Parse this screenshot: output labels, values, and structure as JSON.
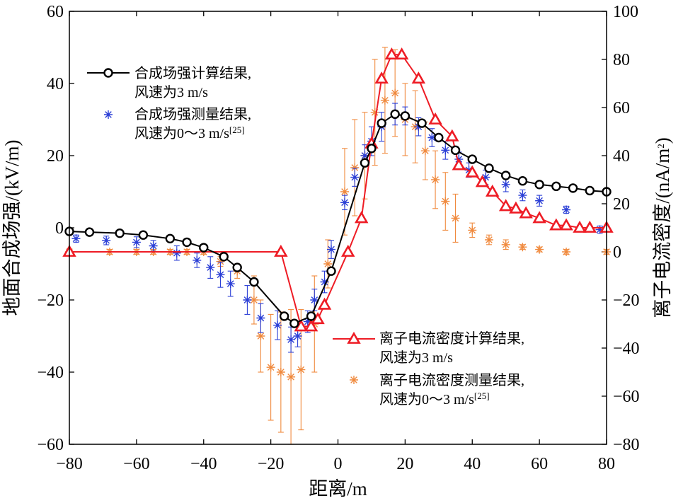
{
  "chart_data": {
    "type": "line",
    "x_axis": {
      "label": "距离/m",
      "range": [
        -80,
        80
      ],
      "ticks": [
        -80,
        -60,
        -40,
        -20,
        0,
        20,
        40,
        60,
        80
      ],
      "tick_labels": [
        "−80",
        "−60",
        "−40",
        "−20",
        "0",
        "20",
        "40",
        "60",
        "80"
      ]
    },
    "y_left": {
      "label": "地面合成场强/(kV/m)",
      "range": [
        -60,
        60
      ],
      "ticks": [
        -60,
        -40,
        -20,
        0,
        20,
        40,
        60
      ],
      "tick_labels": [
        "−60",
        "−40",
        "−20",
        "0",
        "20",
        "40",
        "60"
      ]
    },
    "y_right": {
      "label_main": "离子电流密度/(nA/m",
      "label_sup": "2",
      "label_tail": ")",
      "range": [
        -80,
        100
      ],
      "ticks": [
        -80,
        -60,
        -40,
        -20,
        0,
        20,
        40,
        60,
        80,
        100
      ],
      "tick_labels": [
        "−80",
        "−60",
        "−40",
        "−20",
        "0",
        "20",
        "40",
        "60",
        "80",
        "100"
      ]
    },
    "grid": false,
    "series": [
      {
        "id": "field_calc",
        "axis": "left",
        "color": "#000000",
        "marker": "circle",
        "legend": [
          "合成场强计算结果,",
          "风速为3 m/s"
        ],
        "x": [
          -80,
          -74,
          -65,
          -58,
          -50,
          -45,
          -40,
          -34,
          -30,
          -25,
          -16,
          -13,
          -8,
          -2,
          8,
          10,
          13,
          17,
          20,
          25,
          30,
          35,
          40,
          45,
          50,
          55,
          60,
          65,
          70,
          75,
          80
        ],
        "y": [
          -1,
          -1.2,
          -1.5,
          -2,
          -3,
          -4,
          -5.5,
          -8,
          -11,
          -15,
          -24.5,
          -26.5,
          -24.5,
          -12,
          18,
          22,
          29,
          31.5,
          31,
          29,
          25,
          21.5,
          19,
          16.5,
          14.5,
          13,
          12,
          11.5,
          11,
          10.3,
          10
        ]
      },
      {
        "id": "field_meas",
        "axis": "left",
        "color": "#2b3fd6",
        "marker": "asterisk",
        "legend": [
          "合成场强测量结果,",
          "风速为0～3 m/s"
        ],
        "legend_ref": "[25]",
        "x": [
          -78,
          -69,
          -60,
          -55,
          -48,
          -42,
          -38,
          -35,
          -32,
          -27,
          -23,
          -18,
          -14,
          -12,
          -9,
          -7,
          -4,
          -2,
          2,
          5,
          8,
          10,
          13,
          17,
          20,
          24,
          28,
          32,
          36,
          39,
          44,
          50,
          55,
          60,
          68,
          78
        ],
        "y": [
          -3,
          -3.5,
          -4,
          -5,
          -7,
          -9,
          -11,
          -13,
          -15.5,
          -20,
          -25,
          -27,
          -31,
          -30,
          -26,
          -20,
          -15,
          -6,
          7,
          14,
          20,
          24,
          28,
          31.5,
          31,
          28,
          25,
          21.5,
          19,
          16,
          14,
          12,
          9,
          7.5,
          5,
          -0.5
        ],
        "err": [
          1,
          1.2,
          1.5,
          1.5,
          2,
          2,
          3,
          3.5,
          3.5,
          4,
          4,
          4,
          3.5,
          3,
          3,
          3,
          3,
          2.5,
          2,
          2.5,
          3,
          4,
          4,
          3,
          2.5,
          2.5,
          2.5,
          2.5,
          2,
          2,
          2,
          2,
          1.5,
          1.5,
          1,
          1
        ]
      },
      {
        "id": "current_calc",
        "axis": "right",
        "color": "#ee1c25",
        "marker": "triangle",
        "legend": [
          "离子电流密度计算结果,",
          "风速为3 m/s"
        ],
        "x": [
          -80,
          -17,
          -11,
          -8,
          -6,
          -4,
          3,
          7,
          10,
          13,
          16,
          19,
          24,
          29,
          34,
          36,
          40,
          43,
          46,
          50,
          53,
          56,
          60,
          65,
          68,
          72,
          75,
          80
        ],
        "y": [
          0,
          0,
          -31,
          -31,
          -28,
          -22,
          0,
          14,
          45,
          72,
          82,
          82,
          72,
          55,
          48,
          36,
          33,
          29,
          25,
          19,
          18,
          16,
          14,
          11,
          11,
          10,
          10,
          10
        ]
      },
      {
        "id": "current_meas",
        "axis": "right",
        "color": "#f08a3e",
        "marker": "asterisk",
        "legend": [
          "离子电流密度测量结果,",
          "风速为0～3 m/s"
        ],
        "legend_ref": "[25]",
        "x": [
          -80,
          -68,
          -60,
          -55,
          -50,
          -45,
          -40,
          -35,
          -30,
          -25,
          -23,
          -20,
          -17,
          -14,
          -11,
          -7,
          -3,
          2,
          5,
          8,
          11,
          14,
          17,
          20,
          23,
          26,
          29,
          32,
          35,
          40,
          45,
          50,
          55,
          60,
          68,
          80
        ],
        "y": [
          0,
          0,
          0,
          0,
          0,
          0,
          0,
          -4,
          -8,
          -20,
          -35,
          -48,
          -50,
          -52,
          -49,
          -30,
          -5,
          25,
          35,
          40,
          58,
          63,
          66,
          55,
          52,
          42,
          30,
          21,
          14,
          9,
          5,
          3,
          2,
          1,
          0,
          0
        ],
        "err": [
          1,
          1,
          1,
          1,
          1,
          1,
          1,
          2,
          3,
          10,
          15,
          22,
          25,
          28,
          25,
          20,
          10,
          18,
          20,
          18,
          22,
          22,
          18,
          15,
          15,
          12,
          12,
          12,
          10,
          3,
          2,
          2,
          1,
          1,
          1,
          1
        ]
      }
    ]
  }
}
